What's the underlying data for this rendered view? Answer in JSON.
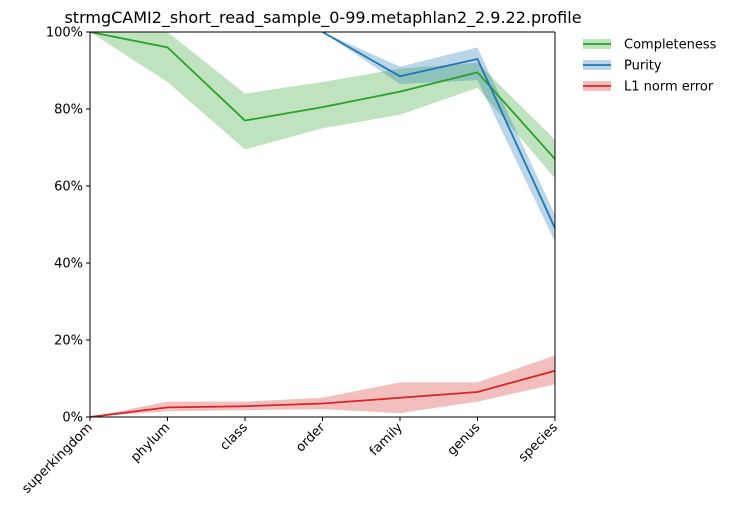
{
  "chart_data": {
    "type": "line",
    "title": "strmgCAMI2_short_read_sample_0-99.metaphlan2_2.9.22.profile",
    "xlabel": "",
    "ylabel": "",
    "categories": [
      "superkingdom",
      "phylum",
      "class",
      "order",
      "family",
      "genus",
      "species"
    ],
    "ylim": [
      0,
      100
    ],
    "yticks": [
      0,
      20,
      40,
      60,
      80,
      100
    ],
    "ytick_labels": [
      "0%",
      "20%",
      "40%",
      "60%",
      "80%",
      "100%"
    ],
    "grid": false,
    "legend_position": "outside-top-right",
    "series": [
      {
        "name": "Completeness",
        "color": "#2ca02c",
        "values": [
          100,
          96,
          77,
          80.5,
          84.5,
          89.5,
          67
        ],
        "lower": [
          100,
          87,
          69.5,
          75,
          78.5,
          85.5,
          62
        ],
        "upper": [
          100,
          100,
          84,
          87,
          90.5,
          92,
          72
        ]
      },
      {
        "name": "Purity",
        "color": "#1f77b4",
        "values": [
          null,
          null,
          null,
          100,
          88.5,
          93,
          49
        ],
        "lower": [
          null,
          null,
          null,
          100,
          86.5,
          87.5,
          45.5
        ],
        "upper": [
          null,
          null,
          null,
          100,
          91,
          96,
          52.5
        ]
      },
      {
        "name": "L1 norm error",
        "color": "#d62728",
        "values": [
          0,
          2.5,
          2.8,
          3.5,
          5,
          6.5,
          12
        ],
        "lower": [
          0,
          1.5,
          1.8,
          2,
          1,
          4,
          8.5
        ],
        "upper": [
          0,
          4,
          4,
          5,
          9,
          9,
          16
        ]
      }
    ]
  }
}
